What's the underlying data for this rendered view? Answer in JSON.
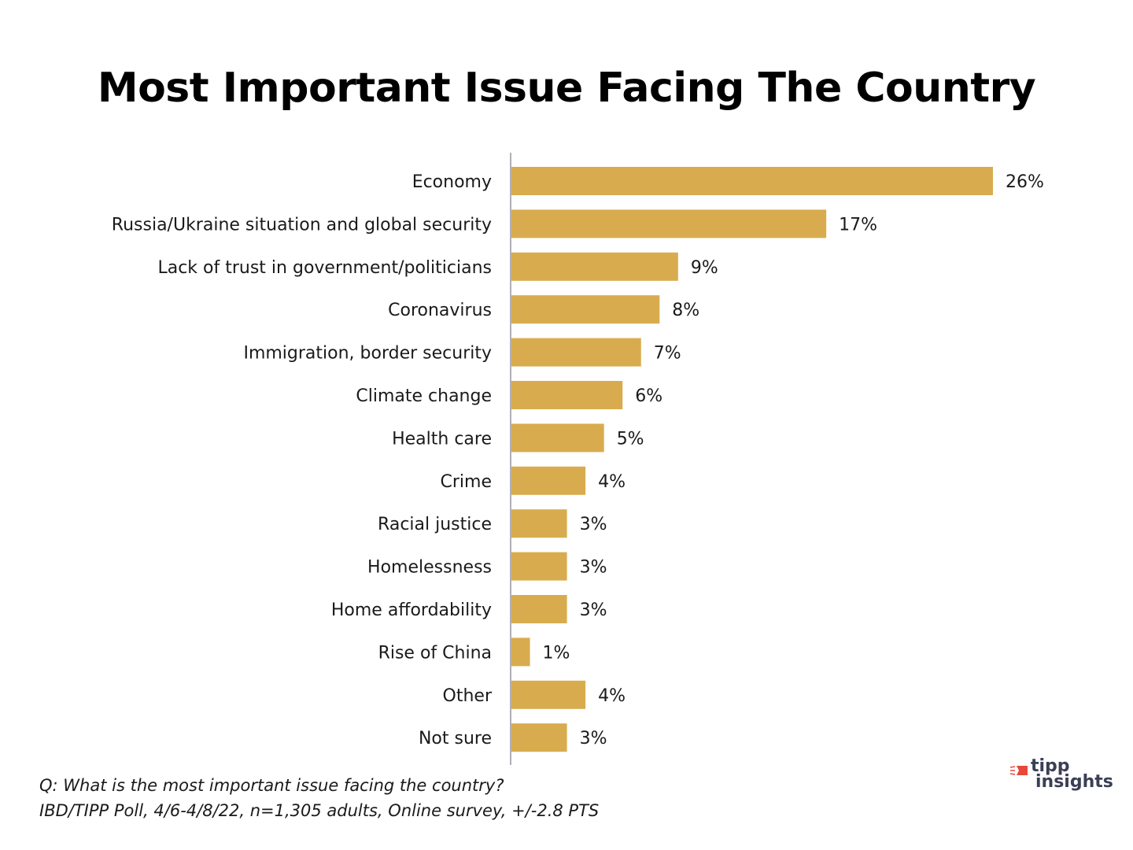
{
  "chart_data": {
    "type": "bar",
    "orientation": "horizontal",
    "title": "Most Important Issue Facing The Country",
    "xlabel": "",
    "ylabel": "",
    "xlim": [
      0,
      26
    ],
    "grid": false,
    "legend": "none",
    "bar_color": "#D8AC4E",
    "categories": [
      "Economy",
      "Russia/Ukraine situation and global security",
      "Lack of trust in government/politicians",
      "Coronavirus",
      "Immigration, border security",
      "Climate change",
      "Health care",
      "Crime",
      "Racial justice",
      "Homelessness",
      "Home affordability",
      "Rise of China",
      "Other",
      "Not sure"
    ],
    "values": [
      26,
      17,
      9,
      8,
      7,
      6,
      5,
      4,
      3,
      3,
      3,
      1,
      4,
      3
    ],
    "value_labels": [
      "26%",
      "17%",
      "9%",
      "8%",
      "7%",
      "6%",
      "5%",
      "4%",
      "3%",
      "3%",
      "3%",
      "1%",
      "4%",
      "3%"
    ],
    "unit": "%"
  },
  "footnote": {
    "question": "Q:  What is the most important issue facing the country?",
    "source": "IBD/TIPP Poll, 4/6-4/8/22, n=1,305 adults, Online survey, +/-2.8 PTS"
  },
  "logo": {
    "line1": "tipp",
    "line2": "insights",
    "accent_color": "#E8483B",
    "text_color": "#3A3F55"
  }
}
